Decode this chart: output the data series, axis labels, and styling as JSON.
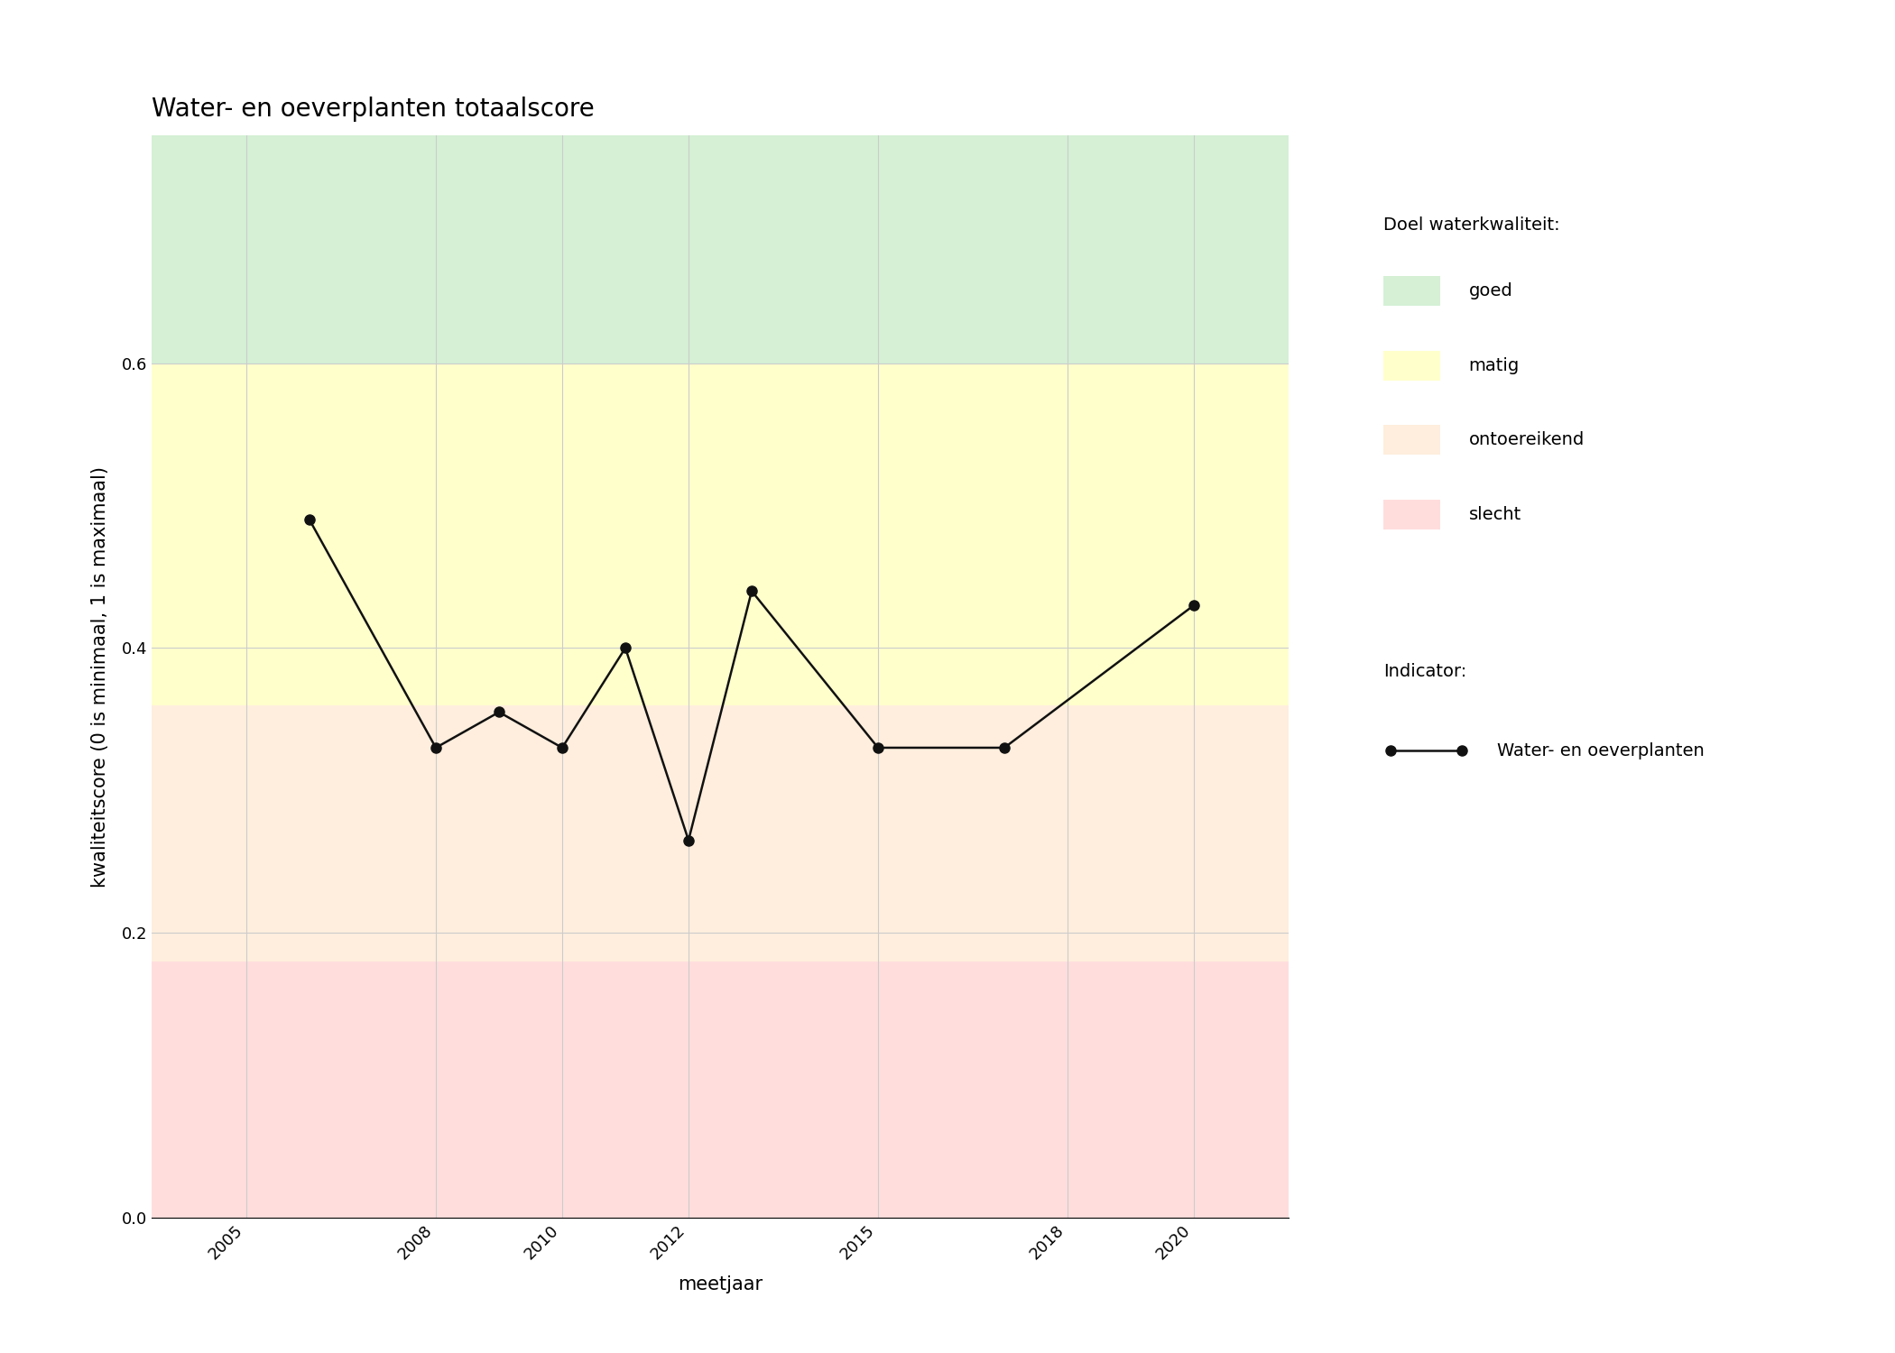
{
  "title": "Water- en oeverplanten totaalscore",
  "xlabel": "meetjaar",
  "ylabel": "kwaliteitscore (0 is minimaal, 1 is maximaal)",
  "years": [
    2006,
    2008,
    2009,
    2010,
    2011,
    2012,
    2013,
    2015,
    2017,
    2020
  ],
  "scores": [
    0.49,
    0.33,
    0.355,
    0.33,
    0.4,
    0.265,
    0.44,
    0.33,
    0.33,
    0.43
  ],
  "ylim": [
    0.0,
    0.76
  ],
  "xlim": [
    2003.5,
    2021.5
  ],
  "xticks": [
    2005,
    2008,
    2010,
    2012,
    2015,
    2018,
    2020
  ],
  "yticks": [
    0.0,
    0.2,
    0.4,
    0.6
  ],
  "bg_good_color": "#d5f0d5",
  "bg_matig_color": "#ffffcc",
  "bg_ontoereikend_color": "#ffeedd",
  "bg_slecht_color": "#ffdddd",
  "good_threshold": 0.6,
  "matig_threshold": 0.36,
  "ontoereikend_threshold": 0.18,
  "line_color": "#111111",
  "marker_color": "#111111",
  "legend_title_1": "Doel waterkwaliteit:",
  "legend_title_2": "Indicator:",
  "legend_label_good": "goed",
  "legend_label_matig": "matig",
  "legend_label_ontoereikend": "ontoereikend",
  "legend_label_slecht": "slecht",
  "legend_label_line": "Water- en oeverplanten",
  "figure_bg": "#ffffff",
  "axes_bg": "#ffffff",
  "grid_color": "#cccccc",
  "title_fontsize": 20,
  "label_fontsize": 15,
  "tick_fontsize": 13,
  "legend_fontsize": 14,
  "legend_title_fontsize": 14,
  "marker_size": 8,
  "line_width": 1.8
}
